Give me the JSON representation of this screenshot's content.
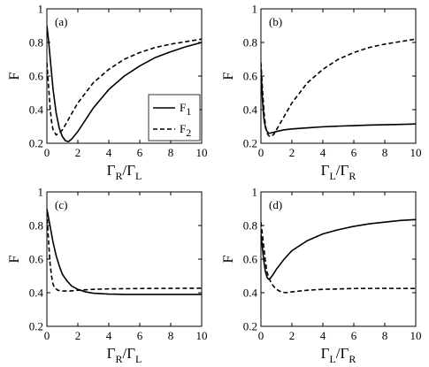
{
  "chart_data": [
    {
      "type": "line",
      "panel_label": "(a)",
      "xlabel": {
        "main": "Γ",
        "sub1": "R",
        "sep": "/Γ",
        "sub2": "L"
      },
      "ylabel": "F",
      "xlim": [
        0,
        10
      ],
      "ylim": [
        0.2,
        1.0
      ],
      "xticks": [
        "0",
        "2",
        "4",
        "6",
        "8",
        "10"
      ],
      "yticks": [
        "0.2",
        "0.4",
        "0.6",
        "0.8",
        "1"
      ],
      "legend": {
        "position": "center-right",
        "entries": [
          {
            "main": "F",
            "sub": "1",
            "style": "solid"
          },
          {
            "main": "F",
            "sub": "2",
            "style": "dashed"
          }
        ]
      },
      "series": [
        {
          "style": "solid",
          "x": [
            0,
            0.1,
            0.2,
            0.4,
            0.6,
            0.8,
            1.0,
            1.2,
            1.4,
            1.6,
            2.0,
            2.5,
            3,
            4,
            5,
            6,
            7,
            8,
            9,
            10
          ],
          "y": [
            0.9,
            0.82,
            0.72,
            0.52,
            0.38,
            0.29,
            0.24,
            0.215,
            0.21,
            0.225,
            0.27,
            0.34,
            0.41,
            0.52,
            0.6,
            0.66,
            0.71,
            0.745,
            0.775,
            0.8
          ]
        },
        {
          "style": "dashed",
          "x": [
            0,
            0.1,
            0.2,
            0.3,
            0.4,
            0.6,
            0.8,
            1.0,
            1.2,
            1.5,
            2,
            3,
            4,
            5,
            6,
            7,
            8,
            9,
            10
          ],
          "y": [
            0.68,
            0.55,
            0.42,
            0.33,
            0.28,
            0.25,
            0.26,
            0.28,
            0.31,
            0.36,
            0.44,
            0.56,
            0.64,
            0.7,
            0.74,
            0.77,
            0.79,
            0.805,
            0.82
          ]
        }
      ]
    },
    {
      "type": "line",
      "panel_label": "(b)",
      "xlabel": {
        "main": "Γ",
        "sub1": "L",
        "sep": "/Γ",
        "sub2": "R"
      },
      "ylabel": "F",
      "xlim": [
        0,
        10
      ],
      "ylim": [
        0.2,
        1.0
      ],
      "xticks": [
        "0",
        "2",
        "4",
        "6",
        "8",
        "10"
      ],
      "yticks": [
        "0.2",
        "0.4",
        "0.6",
        "0.8",
        "1"
      ],
      "series": [
        {
          "style": "solid",
          "x": [
            0,
            0.05,
            0.1,
            0.2,
            0.3,
            0.4,
            0.5,
            0.6,
            0.8,
            1.0,
            1.5,
            2,
            3,
            4,
            5,
            6,
            7,
            8,
            9,
            10
          ],
          "y": [
            0.65,
            0.55,
            0.45,
            0.34,
            0.29,
            0.27,
            0.26,
            0.26,
            0.265,
            0.27,
            0.28,
            0.285,
            0.292,
            0.298,
            0.302,
            0.305,
            0.308,
            0.31,
            0.312,
            0.315
          ]
        },
        {
          "style": "dashed",
          "x": [
            0,
            0.1,
            0.2,
            0.3,
            0.4,
            0.5,
            0.6,
            0.8,
            1.0,
            1.5,
            2,
            3,
            4,
            5,
            6,
            7,
            8,
            9,
            10
          ],
          "y": [
            0.68,
            0.52,
            0.38,
            0.3,
            0.26,
            0.245,
            0.24,
            0.25,
            0.28,
            0.36,
            0.44,
            0.56,
            0.64,
            0.7,
            0.74,
            0.77,
            0.79,
            0.805,
            0.82
          ]
        }
      ]
    },
    {
      "type": "line",
      "panel_label": "(c)",
      "xlabel": {
        "main": "Γ",
        "sub1": "R",
        "sep": "/Γ",
        "sub2": "L"
      },
      "ylabel": "F",
      "xlim": [
        0,
        10
      ],
      "ylim": [
        0.2,
        1.0
      ],
      "xticks": [
        "0",
        "2",
        "4",
        "6",
        "8",
        "10"
      ],
      "yticks": [
        "0.2",
        "0.4",
        "0.6",
        "0.8",
        "1"
      ],
      "series": [
        {
          "style": "solid",
          "x": [
            0,
            0.2,
            0.4,
            0.6,
            0.8,
            1.0,
            1.3,
            1.6,
            2,
            2.5,
            3,
            4,
            5,
            6,
            7,
            8,
            9,
            10
          ],
          "y": [
            0.9,
            0.8,
            0.7,
            0.62,
            0.56,
            0.51,
            0.47,
            0.44,
            0.42,
            0.405,
            0.397,
            0.392,
            0.39,
            0.39,
            0.39,
            0.39,
            0.39,
            0.39
          ]
        },
        {
          "style": "dashed",
          "x": [
            0,
            0.1,
            0.2,
            0.3,
            0.4,
            0.5,
            0.7,
            1.0,
            1.5,
            2,
            3,
            4,
            6,
            8,
            10
          ],
          "y": [
            0.88,
            0.72,
            0.58,
            0.5,
            0.45,
            0.43,
            0.415,
            0.41,
            0.41,
            0.415,
            0.42,
            0.423,
            0.425,
            0.426,
            0.427
          ]
        }
      ]
    },
    {
      "type": "line",
      "panel_label": "(d)",
      "xlabel": {
        "main": "Γ",
        "sub1": "L",
        "sep": "/Γ",
        "sub2": "R"
      },
      "ylabel": "F",
      "xlim": [
        0,
        10
      ],
      "ylim": [
        0.2,
        1.0
      ],
      "xticks": [
        "0",
        "2",
        "4",
        "6",
        "8",
        "10"
      ],
      "yticks": [
        "0.2",
        "0.4",
        "0.6",
        "0.8",
        "1"
      ],
      "series": [
        {
          "style": "solid",
          "x": [
            0,
            0.1,
            0.2,
            0.3,
            0.4,
            0.5,
            0.6,
            0.8,
            1.0,
            1.5,
            2,
            3,
            4,
            5,
            6,
            7,
            8,
            9,
            10
          ],
          "y": [
            0.75,
            0.66,
            0.58,
            0.52,
            0.49,
            0.48,
            0.485,
            0.51,
            0.54,
            0.6,
            0.65,
            0.71,
            0.75,
            0.775,
            0.795,
            0.81,
            0.82,
            0.83,
            0.835
          ]
        },
        {
          "style": "dashed",
          "x": [
            0,
            0.1,
            0.2,
            0.3,
            0.4,
            0.6,
            0.8,
            1.0,
            1.3,
            1.6,
            2,
            3,
            4,
            6,
            8,
            10
          ],
          "y": [
            0.82,
            0.74,
            0.66,
            0.58,
            0.52,
            0.47,
            0.44,
            0.42,
            0.405,
            0.4,
            0.405,
            0.415,
            0.42,
            0.425,
            0.426,
            0.425
          ]
        }
      ]
    }
  ]
}
